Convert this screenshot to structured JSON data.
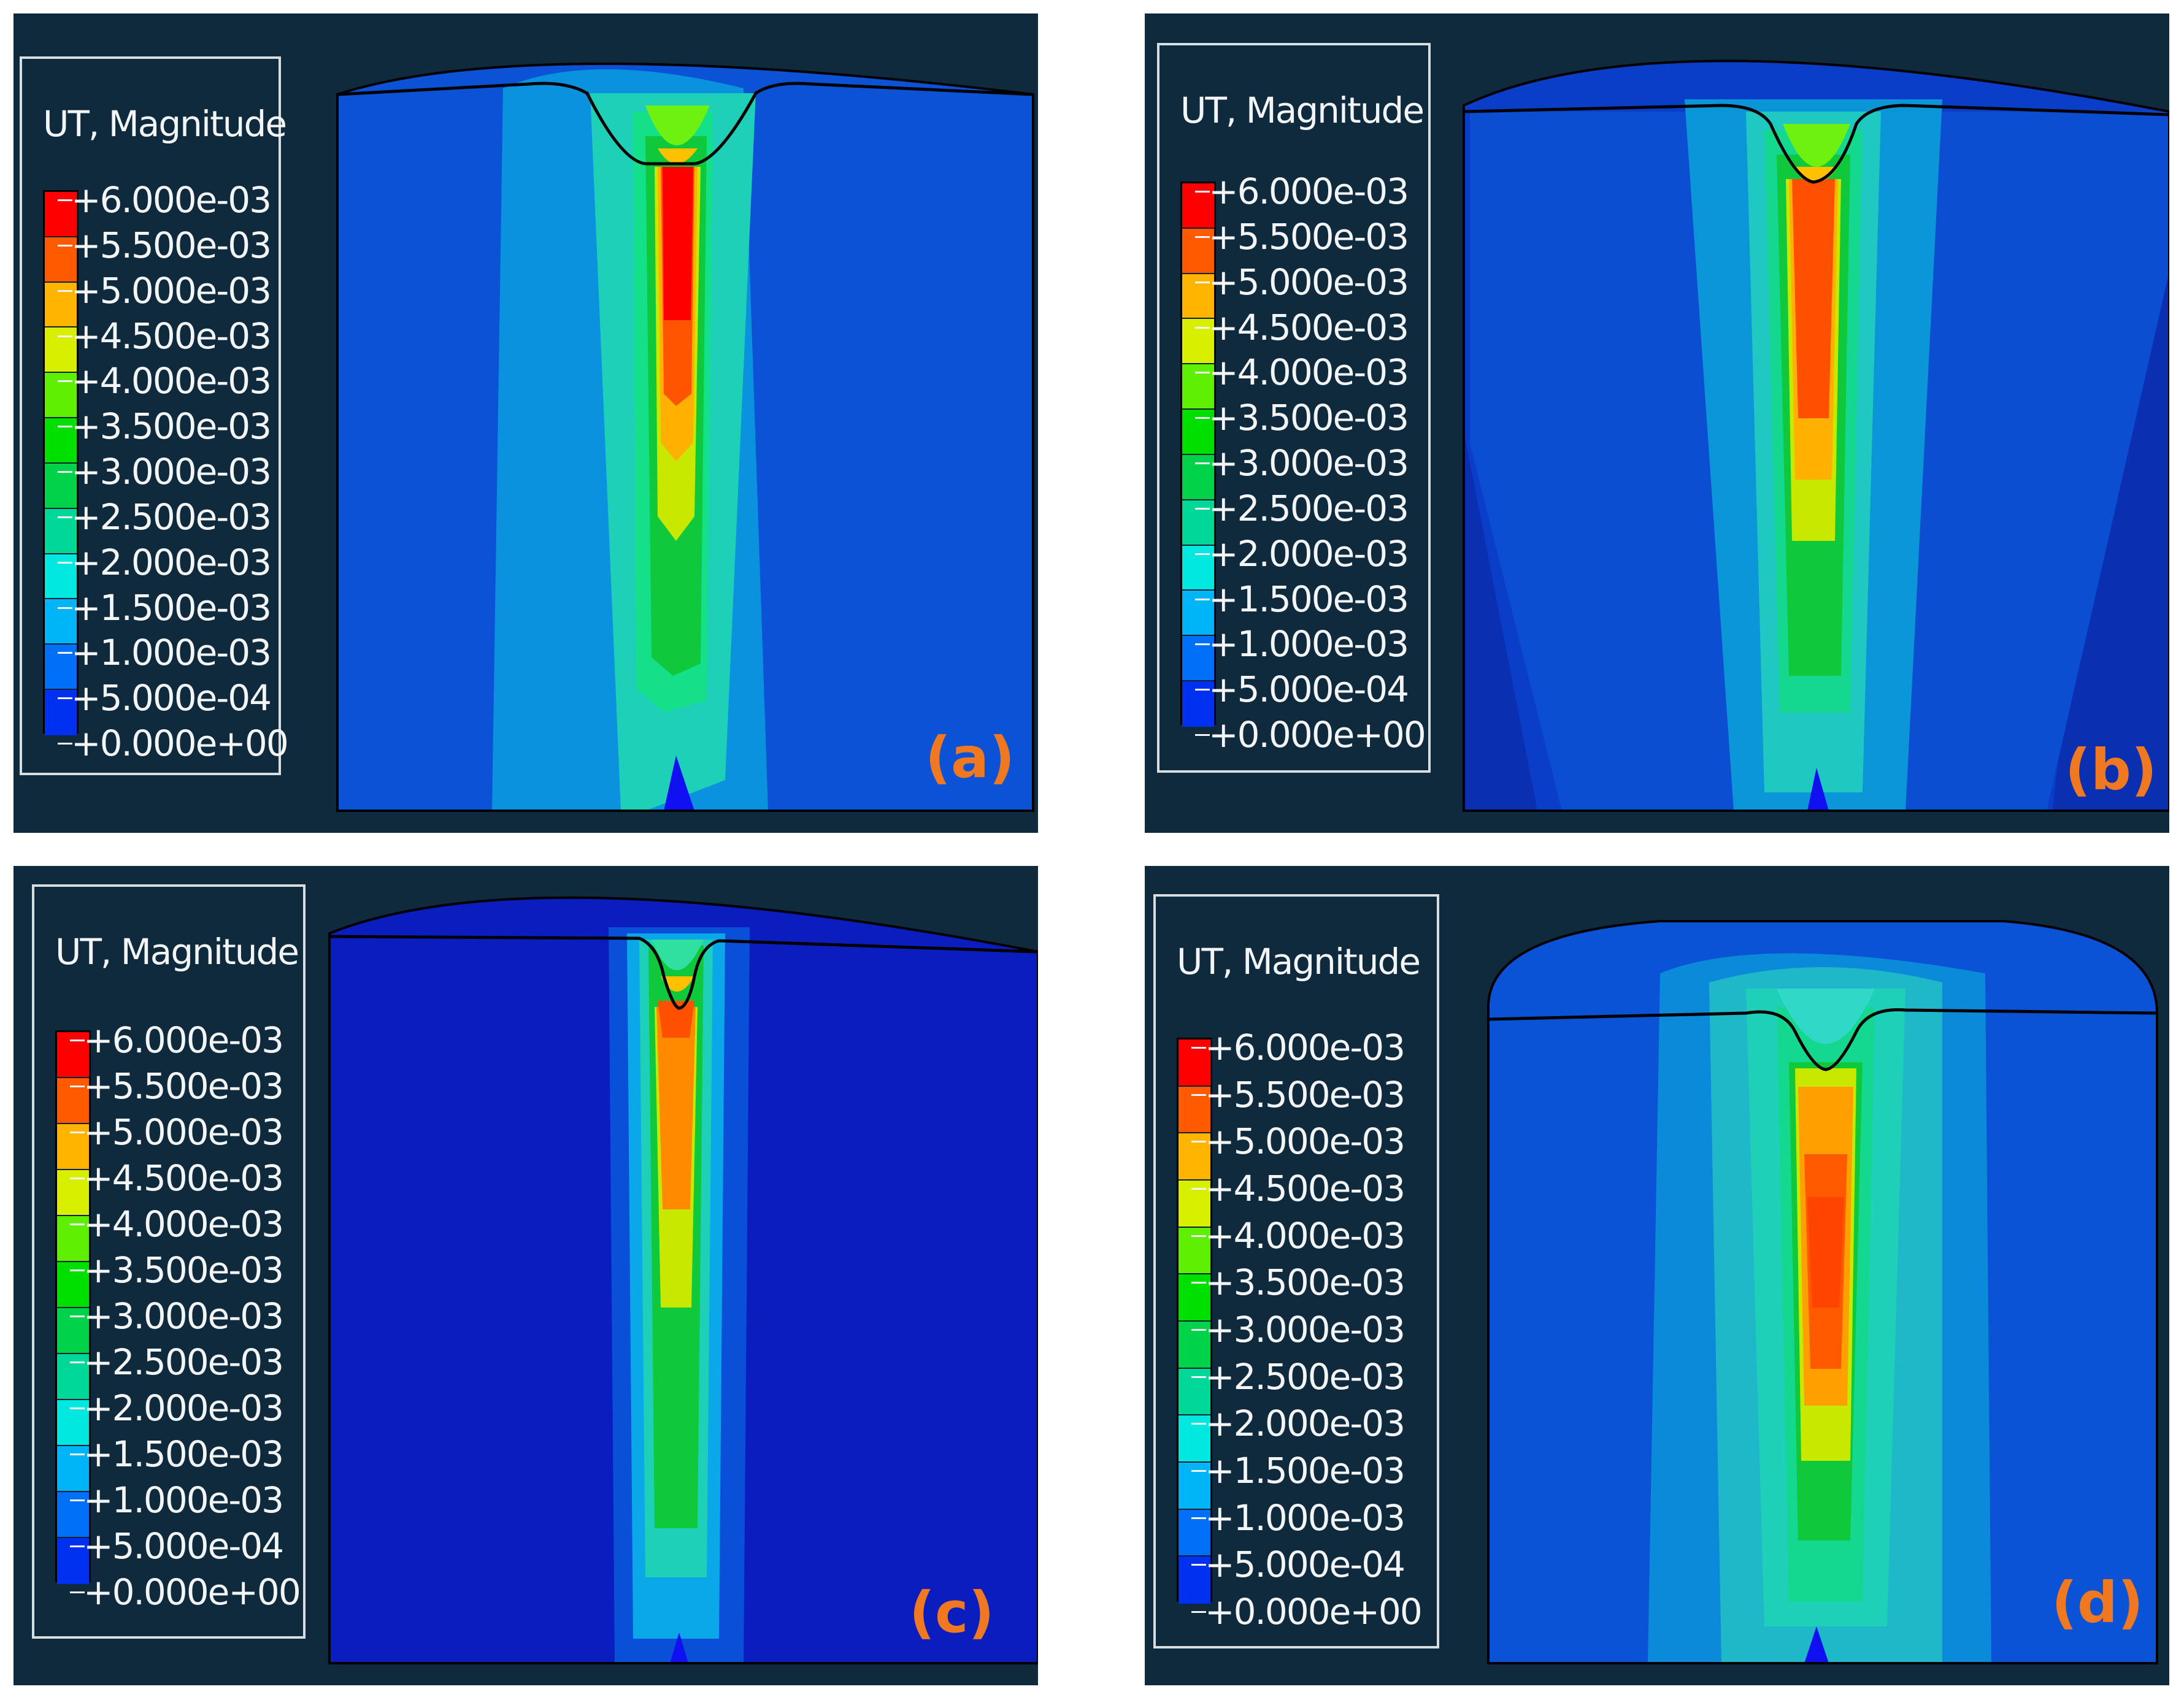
{
  "legend": {
    "title": "UT, Magnitude",
    "ticks": [
      "+6.000e-03",
      "+5.500e-03",
      "+5.000e-03",
      "+4.500e-03",
      "+4.000e-03",
      "+3.500e-03",
      "+3.000e-03",
      "+2.500e-03",
      "+2.000e-03",
      "+1.500e-03",
      "+1.000e-03",
      "+5.000e-04",
      "+0.000e+00"
    ],
    "colors": [
      "#ff0000",
      "#ff5a00",
      "#ffb400",
      "#d8f000",
      "#5ef000",
      "#00e000",
      "#00d24a",
      "#00d898",
      "#00e8e0",
      "#00b4f8",
      "#0070f8",
      "#0030f0"
    ]
  },
  "panels": [
    {
      "label": "(a)"
    },
    {
      "label": "(b)"
    },
    {
      "label": "(c)"
    },
    {
      "label": "(d)"
    }
  ]
}
